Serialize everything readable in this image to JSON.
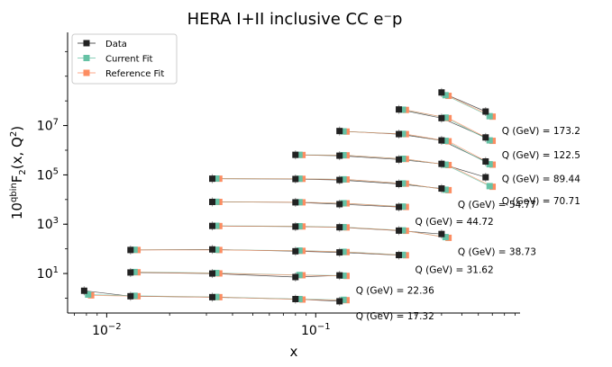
{
  "chart_data": {
    "type": "scatter",
    "title": "HERA I+II inclusive CC e⁻p",
    "xlabel": "x",
    "ylabel": "10^qbin F₂(x, Q²)",
    "xscale": "log",
    "yscale": "log",
    "xlim": [
      0.0065,
      0.95
    ],
    "ylim": [
      0.25,
      60000000000
    ],
    "x_ticks": [
      {
        "value": 0.01,
        "base": "10",
        "exp": "−2"
      },
      {
        "value": 0.1,
        "base": "10",
        "exp": "−1"
      }
    ],
    "y_ticks": [
      {
        "value": 10,
        "base": "10",
        "exp": "1"
      },
      {
        "value": 1000,
        "base": "10",
        "exp": "3"
      },
      {
        "value": 100000,
        "base": "10",
        "exp": "5"
      },
      {
        "value": 10000000,
        "base": "10",
        "exp": "7"
      }
    ],
    "grid": false,
    "legend_position": "top-left",
    "series": [
      {
        "name": "Data",
        "color": "#222222",
        "marker": "square"
      },
      {
        "name": "Current Fit",
        "color": "#66c2a5",
        "marker": "square"
      },
      {
        "name": "Reference Fit",
        "color": "#fc8d62",
        "marker": "square"
      }
    ],
    "bins": [
      {
        "label": "Q (GeV) = 17.32",
        "x": [
          0.0078,
          0.013,
          0.032,
          0.08,
          0.13
        ],
        "data": [
          2.0,
          1.2,
          1.1,
          0.92,
          0.75
        ],
        "current": [
          1.4,
          1.25,
          1.12,
          0.92,
          0.86
        ],
        "reference": [
          1.3,
          1.2,
          1.1,
          0.88,
          0.83
        ]
      },
      {
        "label": "Q (GeV) = 22.36",
        "x": [
          0.013,
          0.032,
          0.08,
          0.13
        ],
        "data": [
          11,
          10,
          7.2,
          8.4
        ],
        "current": [
          11.5,
          10.5,
          8.7,
          8.2
        ],
        "reference": [
          11.2,
          10.1,
          8.5,
          8.0
        ]
      },
      {
        "label": "Q (GeV) = 31.62",
        "x": [
          0.013,
          0.032,
          0.08,
          0.13,
          0.25
        ],
        "data": [
          90,
          95,
          80,
          72,
          56
        ],
        "current": [
          92,
          92,
          85,
          76,
          57
        ],
        "reference": [
          90,
          90,
          83,
          74,
          55
        ]
      },
      {
        "label": "Q (GeV) = 38.73",
        "x": [
          0.032,
          0.08,
          0.13,
          0.25,
          0.4
        ],
        "data": [
          850,
          800,
          750,
          550,
          400
        ],
        "current": [
          860,
          830,
          760,
          560,
          300
        ],
        "reference": [
          840,
          810,
          740,
          540,
          280
        ]
      },
      {
        "label": "Q (GeV) = 44.72",
        "x": [
          0.032,
          0.08,
          0.13,
          0.25
        ],
        "data": [
          8000,
          7700,
          6500,
          5000
        ],
        "current": [
          8100,
          7800,
          7100,
          5200
        ],
        "reference": [
          8000,
          7700,
          7000,
          5000
        ]
      },
      {
        "label": "Q (GeV) = 54.77",
        "x": [
          0.032,
          0.08,
          0.13,
          0.25,
          0.4
        ],
        "data": [
          70000,
          68000,
          62000,
          43000,
          28000
        ],
        "current": [
          71000,
          70000,
          66000,
          45000,
          25000
        ],
        "reference": [
          70000,
          69000,
          65000,
          44000,
          24000
        ]
      },
      {
        "label": "Q (GeV) = 70.71",
        "x": [
          0.08,
          0.13,
          0.25,
          0.4,
          0.65
        ],
        "data": [
          650000,
          600000,
          420000,
          280000,
          80000
        ],
        "current": [
          650000,
          630000,
          450000,
          260000,
          35000
        ],
        "reference": [
          640000,
          620000,
          440000,
          250000,
          33000
        ]
      },
      {
        "label": "Q (GeV) = 89.44",
        "x": [
          0.13,
          0.25,
          0.4,
          0.65
        ],
        "data": [
          6000000,
          4500000,
          2500000,
          350000
        ],
        "current": [
          5800000,
          4600000,
          2400000,
          270000
        ],
        "reference": [
          5700000,
          4500000,
          2300000,
          260000
        ]
      },
      {
        "label": "Q (GeV) = 122.5",
        "x": [
          0.25,
          0.4,
          0.65
        ],
        "data": [
          45000000,
          20000000,
          3300000
        ],
        "current": [
          44000000,
          21000000,
          2500000
        ],
        "reference": [
          43000000,
          20000000,
          2400000
        ]
      },
      {
        "label": "Q (GeV) = 173.2",
        "x": [
          0.4,
          0.65
        ],
        "data": [
          220000000,
          37000000
        ],
        "current": [
          170000000,
          24000000
        ],
        "reference": [
          160000000,
          23000000
        ]
      }
    ]
  }
}
